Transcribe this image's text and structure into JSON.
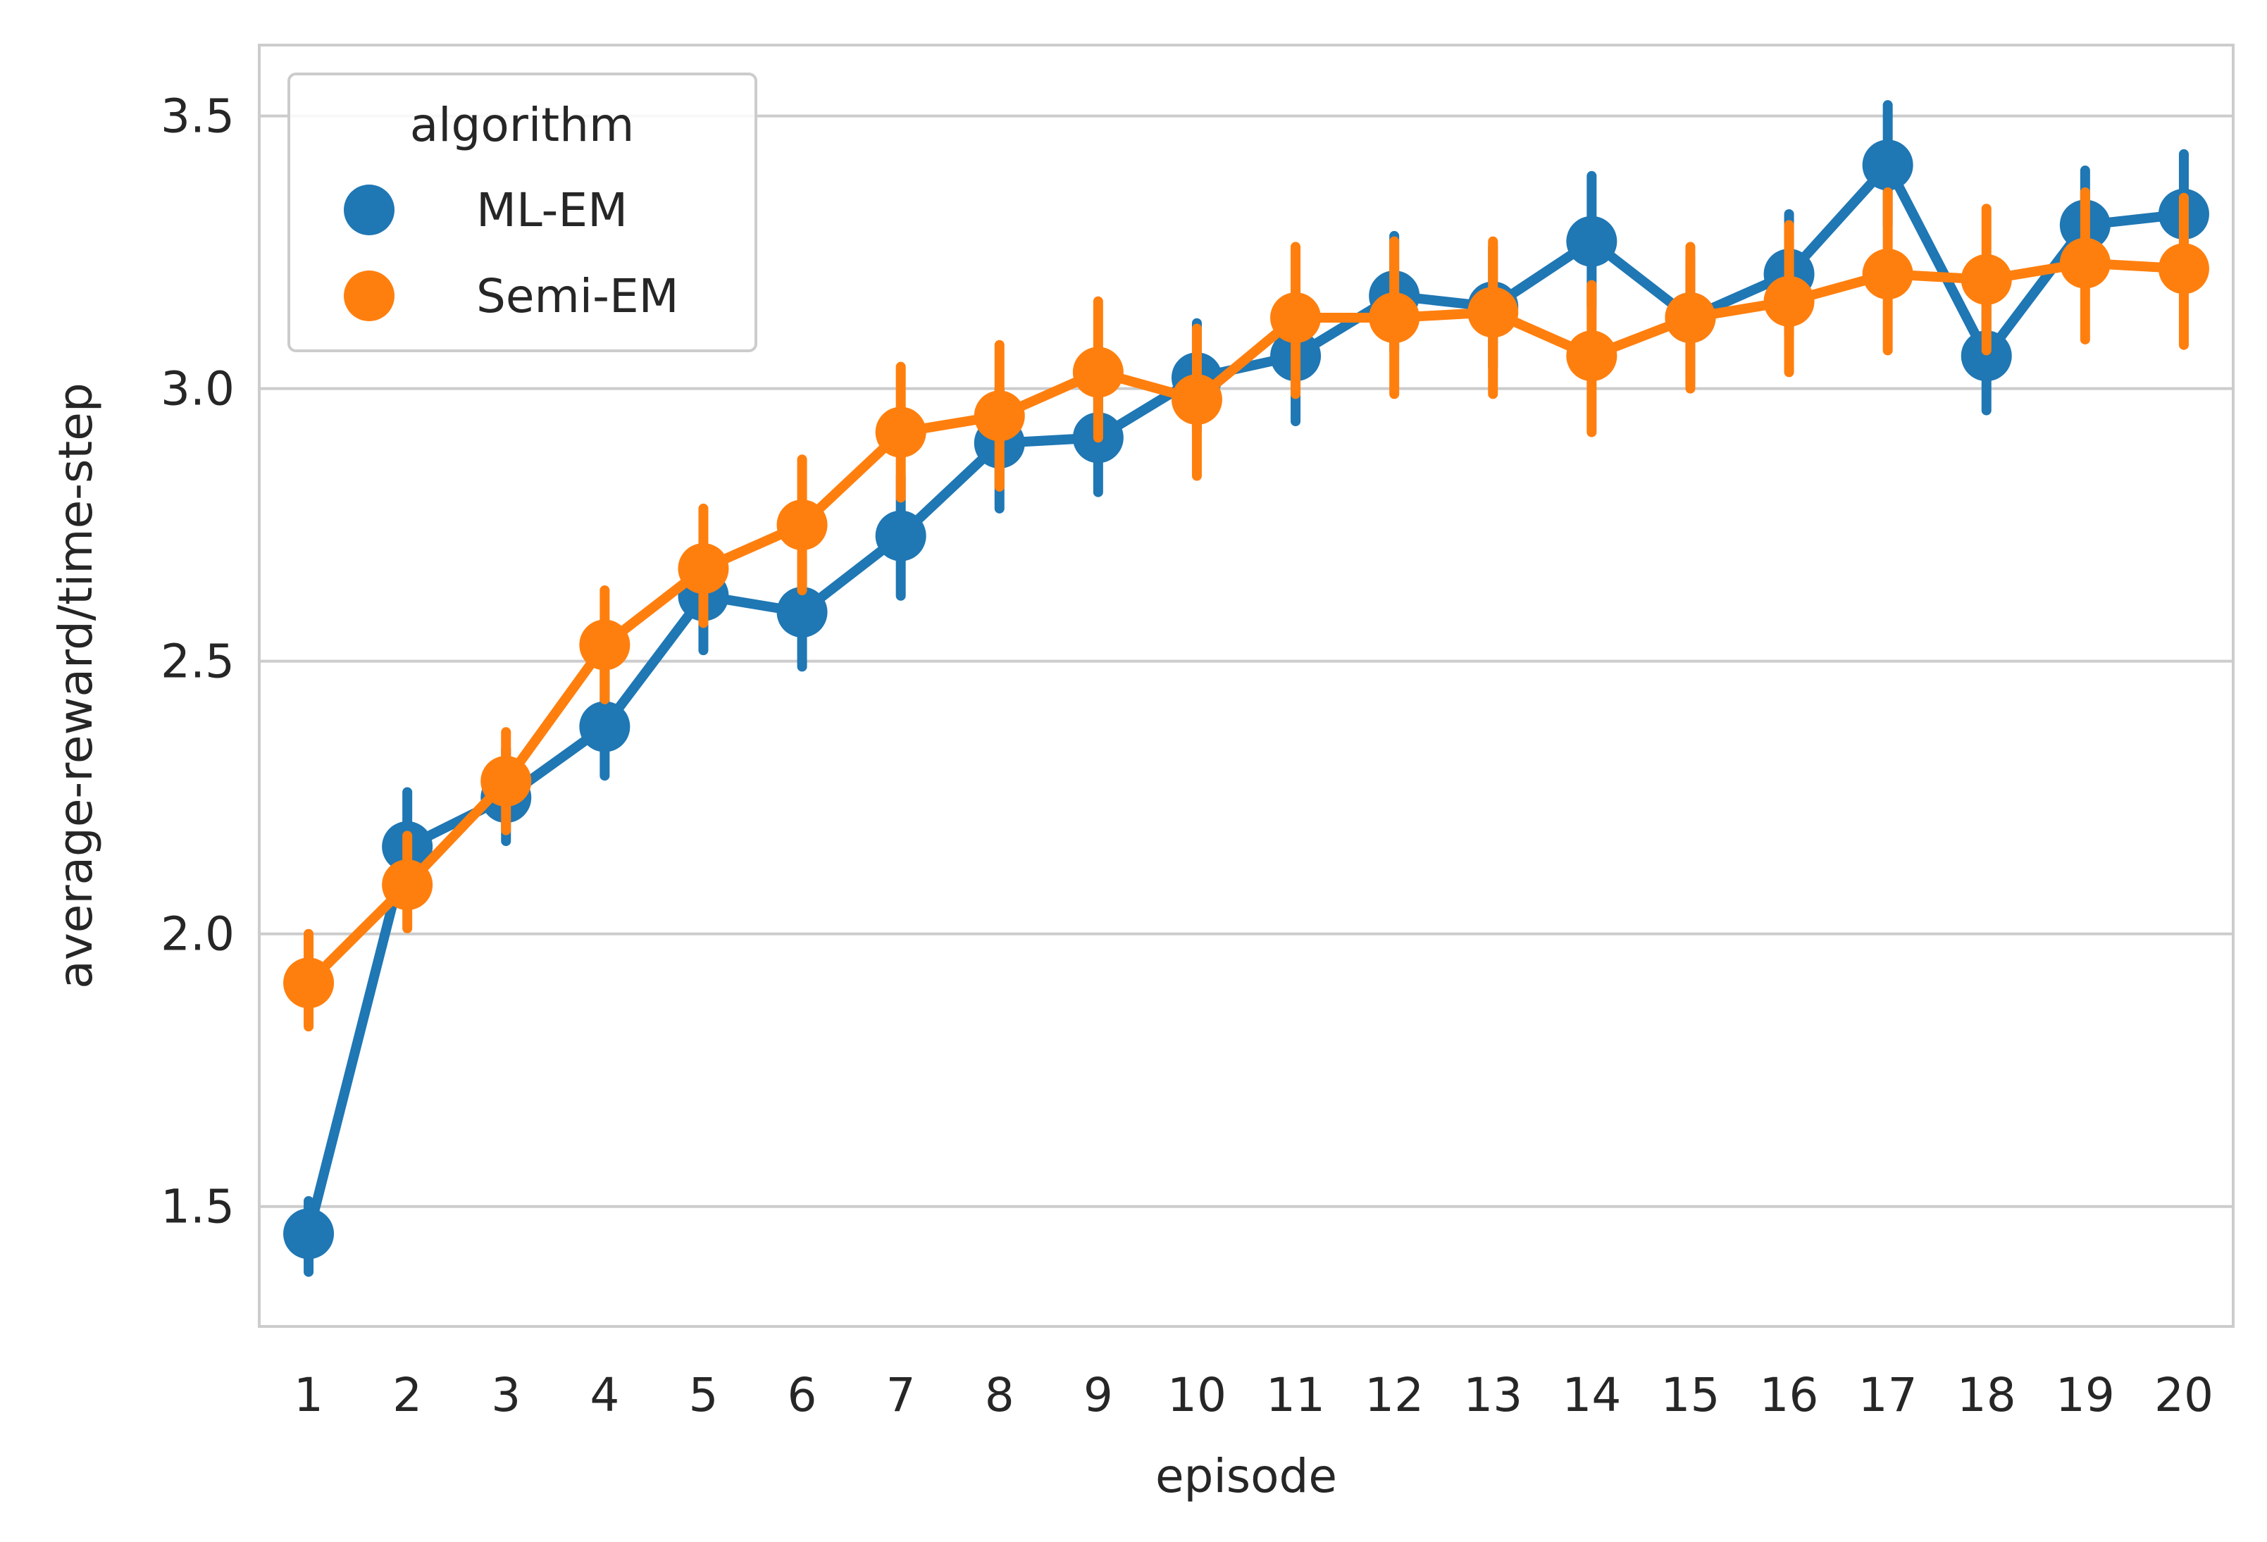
{
  "chart_data": {
    "type": "line",
    "xlabel": "episode",
    "ylabel": "average-reward/time-step",
    "categories": [
      "1",
      "2",
      "3",
      "4",
      "5",
      "6",
      "7",
      "8",
      "9",
      "10",
      "11",
      "12",
      "13",
      "14",
      "15",
      "16",
      "17",
      "18",
      "19",
      "20"
    ],
    "ylim": [
      1.28,
      3.63
    ],
    "yticks": [
      "1.5",
      "2.0",
      "2.5",
      "3.0",
      "3.5"
    ],
    "grid": "horizontal",
    "legend": {
      "title": "algorithm",
      "placement": "top-left"
    },
    "series": [
      {
        "name": "ML-EM",
        "color": "#1f77b4",
        "values": [
          1.45,
          2.16,
          2.25,
          2.38,
          2.62,
          2.59,
          2.73,
          2.9,
          2.91,
          3.02,
          3.06,
          3.17,
          3.15,
          3.27,
          3.13,
          3.21,
          3.41,
          3.06,
          3.3,
          3.32
        ],
        "ci_low": [
          1.38,
          2.07,
          2.17,
          2.29,
          2.52,
          2.49,
          2.62,
          2.78,
          2.81,
          2.92,
          2.94,
          3.07,
          3.04,
          3.15,
          3.01,
          3.1,
          3.3,
          2.96,
          3.2,
          3.21
        ],
        "ci_high": [
          1.51,
          2.26,
          2.34,
          2.49,
          2.71,
          2.69,
          2.84,
          3.0,
          3.02,
          3.12,
          3.18,
          3.28,
          3.26,
          3.39,
          3.24,
          3.32,
          3.52,
          3.17,
          3.4,
          3.43
        ]
      },
      {
        "name": "Semi-EM",
        "color": "#ff7f0e",
        "values": [
          1.91,
          2.09,
          2.28,
          2.53,
          2.67,
          2.75,
          2.92,
          2.95,
          3.03,
          2.98,
          3.13,
          3.13,
          3.14,
          3.06,
          3.13,
          3.16,
          3.21,
          3.2,
          3.23,
          3.22
        ],
        "ci_low": [
          1.83,
          2.01,
          2.19,
          2.43,
          2.57,
          2.63,
          2.8,
          2.82,
          2.91,
          2.84,
          2.99,
          2.99,
          2.99,
          2.92,
          3.0,
          3.03,
          3.07,
          3.07,
          3.09,
          3.08
        ],
        "ci_high": [
          2.0,
          2.18,
          2.37,
          2.63,
          2.78,
          2.87,
          3.04,
          3.08,
          3.16,
          3.11,
          3.26,
          3.27,
          3.27,
          3.19,
          3.26,
          3.3,
          3.36,
          3.33,
          3.36,
          3.35
        ]
      }
    ]
  }
}
